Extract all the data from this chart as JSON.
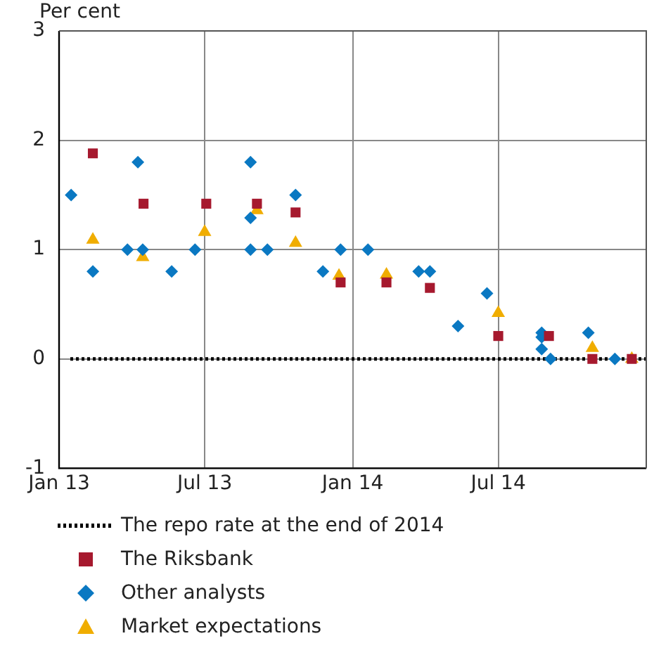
{
  "chart_data": {
    "type": "scatter",
    "ylabel": "Per cent",
    "xlim": [
      "2013-01-01",
      "2015-01-01"
    ],
    "xticks": [
      {
        "value": "2013-01-01",
        "label": "Jan 13"
      },
      {
        "value": "2013-07-01",
        "label": "Jul 13"
      },
      {
        "value": "2014-01-01",
        "label": "Jan 14"
      },
      {
        "value": "2014-07-01",
        "label": "Jul 14"
      },
      {
        "value": "2015-01-01",
        "label": null
      }
    ],
    "ylim": [
      -1,
      3
    ],
    "yticks": [
      -1,
      0,
      1,
      2,
      3
    ],
    "grid": true,
    "legend": "bottom",
    "ref_lines": [
      {
        "axis": "y",
        "value": 0,
        "label": "The repo rate at the end of 2014",
        "color": "#000000",
        "line_style": "dotted"
      }
    ],
    "series": [
      {
        "name": "The Riksbank",
        "color": "#a6192e",
        "marker": "square",
        "x": [
          "2013-02-12",
          "2013-04-16",
          "2013-07-03",
          "2013-09-04",
          "2013-10-22",
          "2013-12-17",
          "2014-02-12",
          "2014-04-07",
          "2014-07-01",
          "2014-09-02",
          "2014-10-26",
          "2014-12-14"
        ],
        "values": [
          1.88,
          1.42,
          1.42,
          1.42,
          1.34,
          0.7,
          0.7,
          0.65,
          0.21,
          0.21,
          0,
          0
        ]
      },
      {
        "name": "Other analysts",
        "color": "#0a78c2",
        "marker": "diamond",
        "x": [
          "2013-01-16",
          "2013-02-12",
          "2013-03-27",
          "2013-04-09",
          "2013-04-15",
          "2013-05-21",
          "2013-06-19",
          "2013-08-27",
          "2013-08-27",
          "2013-08-27",
          "2013-09-17",
          "2013-10-22",
          "2013-11-25",
          "2013-12-17",
          "2014-01-20",
          "2014-03-24",
          "2014-04-07",
          "2014-05-12",
          "2014-06-17",
          "2014-08-24",
          "2014-08-24",
          "2014-08-24",
          "2014-09-04",
          "2014-10-21",
          "2014-11-23"
        ],
        "values": [
          1.5,
          0.8,
          1,
          1.8,
          1,
          0.8,
          1,
          1.8,
          1.29,
          1,
          1,
          1.5,
          0.8,
          1,
          1,
          0.8,
          0.8,
          0.3,
          0.6,
          0.24,
          0.2,
          0.09,
          0,
          0.24,
          0
        ]
      },
      {
        "name": "Market expectations",
        "color": "#f0ad00",
        "marker": "triangle",
        "x": [
          "2013-02-12",
          "2013-04-15",
          "2013-07-01",
          "2013-09-04",
          "2013-10-22",
          "2013-12-15",
          "2014-02-12",
          "2014-04-07",
          "2014-07-01",
          "2014-09-02",
          "2014-10-26",
          "2014-12-14"
        ],
        "values": [
          1.09,
          0.93,
          1.16,
          1.36,
          1.06,
          0.76,
          0.77,
          null,
          0.42,
          null,
          0.1,
          0
        ]
      }
    ]
  }
}
